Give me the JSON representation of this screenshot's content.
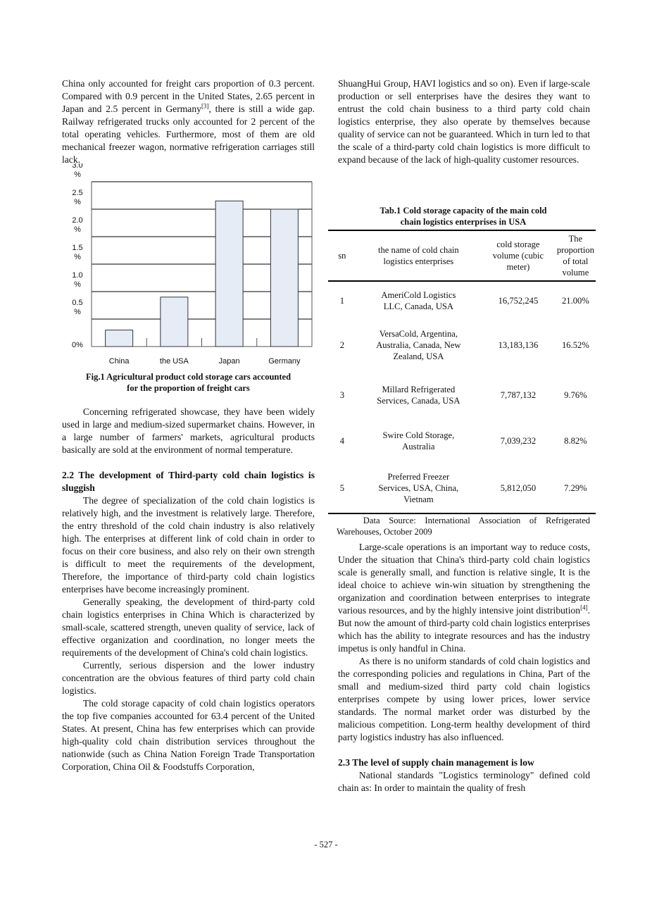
{
  "left": {
    "p1": {
      "a": "China only accounted for freight cars proportion of 0.3 percent. Compared with 0.9 percent in the United States, 2.65 percent in Japan and 2.5 percent in Germany",
      "sup": "[3]",
      "b": ", there is still a wide gap. Railway refrigerated trucks only accounted for 2 percent of the total operating vehicles. Furthermore, most of them are old mechanical freezer wagon, normative refrigeration carriages still lack."
    },
    "fig_caption": [
      "Fig.1 Agricultural product cold storage cars accounted",
      "for the proportion of freight cars"
    ],
    "p2": "Concerning refrigerated showcase, they have been widely used in large and medium-sized supermarket chains. However, in a large number of farmers' markets, agricultural products basically are sold at the environment of normal temperature.",
    "heading": "2.2 The development of Third-party cold chain logistics is sluggish",
    "p3": "The degree of specialization of the cold chain logistics is relatively high, and the investment is relatively large. Therefore, the entry threshold of the cold chain industry is also relatively high. The enterprises at different link of cold chain in order to focus on their core business, and also rely on their own strength is difficult to meet the requirements of the development, Therefore, the importance of third-party cold chain logistics enterprises have become increasingly prominent.",
    "p4": "Generally speaking, the development of third-party cold chain logistics enterprises in China Which is characterized by small-scale, scattered strength, uneven quality of service, lack of effective organization and coordination, no longer meets the requirements of the development of China's cold chain logistics.",
    "p5": "Currently, serious dispersion and the lower industry concentration are the obvious features of third party cold chain logistics.",
    "p6": "The cold storage capacity of cold chain logistics operators the top five companies accounted for 63.4 percent of the United States. At present, China has few enterprises which can provide high-quality cold chain distribution services throughout the nationwide (such as China Nation Foreign Trade Transportation Corporation, China Oil & Foodstuffs Corporation,"
  },
  "right": {
    "p1": "ShuangHui Group, HAVI logistics and so on). Even if large-scale production or sell enterprises have the desires they want to entrust the cold chain business to a third party cold chain logistics enterprise, they also operate by themselves because quality of service can not be guaranteed. Which in turn led to that the scale of a third-party cold chain logistics is more difficult to expand because of the lack of high-quality customer resources.",
    "table_caption": [
      "Tab.1 Cold storage capacity of the main cold",
      "chain logistics enterprises in USA"
    ],
    "table": {
      "headers": [
        "sn",
        "the name of cold chain logistics enterprises",
        "cold storage volume (cubic meter)",
        "The proportion of total volume"
      ],
      "rows": [
        [
          "1",
          "AmeriCold Logistics LLC, Canada, USA",
          "16,752,245",
          "21.00%"
        ],
        [
          "2",
          "VersaCold, Argentina, Australia, Canada, New Zealand, USA",
          "13,183,136",
          "16.52%"
        ],
        [
          "3",
          "Millard Refrigerated Services, Canada, USA",
          "7,787,132",
          "9.76%"
        ],
        [
          "4",
          "Swire Cold Storage, Australia",
          "7,039,232",
          "8.82%"
        ],
        [
          "5",
          "Preferred Freezer Services, USA, China, Vietnam",
          "5,812,050",
          "7.29%"
        ]
      ]
    },
    "source": "Data Source: International Association of Refrigerated Warehouses, October 2009",
    "p2": {
      "a": "Large-scale operations is an important way to reduce costs, Under the situation that China's third-party cold chain logistics scale is generally small, and function is relative single, It is the ideal choice to achieve win-win situation by strengthening the organization and coordination between enterprises to integrate various resources, and by the highly intensive joint distribution",
      "sup": "[4]",
      "b": ". But now the amount of third-party cold chain logistics enterprises which has the ability to integrate resources and has the industry impetus is only handful in China."
    },
    "p3": "As there is no uniform standards of cold chain logistics and the corresponding policies and regulations in China, Part of the small and medium-sized third party cold chain logistics enterprises compete by using lower prices, lower service standards. The normal market order was disturbed by the malicious competition. Long-term healthy development of third party logistics industry has also influenced.",
    "heading": "2.3 The level of supply chain management is low",
    "p4": "National standards \"Logistics terminology\" defined cold chain as: In order to maintain the quality of fresh"
  },
  "footer": "- 527 -",
  "chart_data": {
    "type": "bar",
    "categories": [
      "China",
      "the USA",
      "Japan",
      "Germany"
    ],
    "values": [
      0.3,
      0.9,
      2.65,
      2.5
    ],
    "ytick_labels": [
      "0%",
      "0.5 %",
      "1.0 %",
      "1.5 %",
      "2.0 %",
      "2.5 %",
      "3.0 %"
    ],
    "ylim": [
      0,
      3.0
    ],
    "grid": true,
    "bar_color": "#e6ecf6",
    "title": "Fig.1 Agricultural product cold storage cars accounted for the proportion of freight cars"
  }
}
